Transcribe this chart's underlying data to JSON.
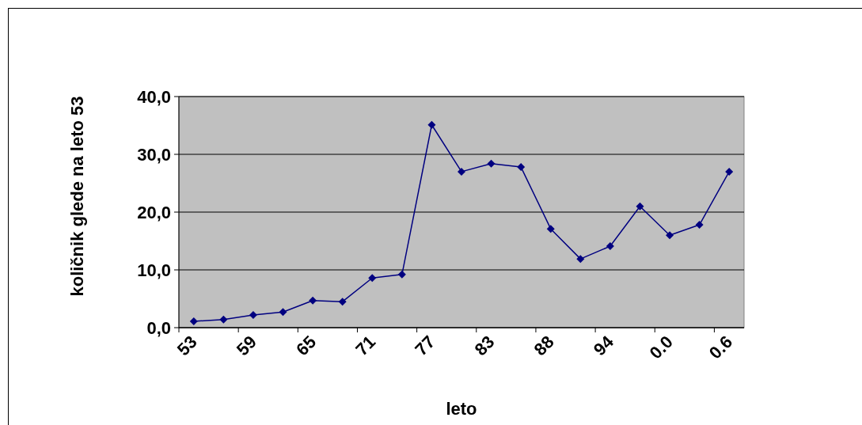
{
  "chart_data": {
    "type": "line",
    "xlabel": "leto",
    "ylabel": "količnik glede na leto 53",
    "categories": [
      "53",
      null,
      "59",
      null,
      "65",
      null,
      "71",
      null,
      "77",
      null,
      "83",
      null,
      "88",
      null,
      "94",
      null,
      "0.0",
      null,
      "0.6"
    ],
    "series": [
      {
        "color": "#000080",
        "values": [
          1.1,
          1.4,
          2.2,
          2.7,
          4.7,
          4.5,
          8.6,
          9.2,
          35.1,
          27.0,
          28.4,
          27.8,
          17.1,
          11.9,
          14.1,
          21.0,
          16.0,
          17.8,
          27.0
        ]
      }
    ],
    "ylim": [
      0,
      40
    ],
    "yticks": [
      {
        "value": 0,
        "label": "0,0"
      },
      {
        "value": 10,
        "label": "10,0"
      },
      {
        "value": 20,
        "label": "20,0"
      },
      {
        "value": 30,
        "label": "30,0"
      },
      {
        "value": 40,
        "label": "40,0"
      }
    ],
    "grid": "y",
    "marker": "diamond",
    "line_style": "solid"
  }
}
